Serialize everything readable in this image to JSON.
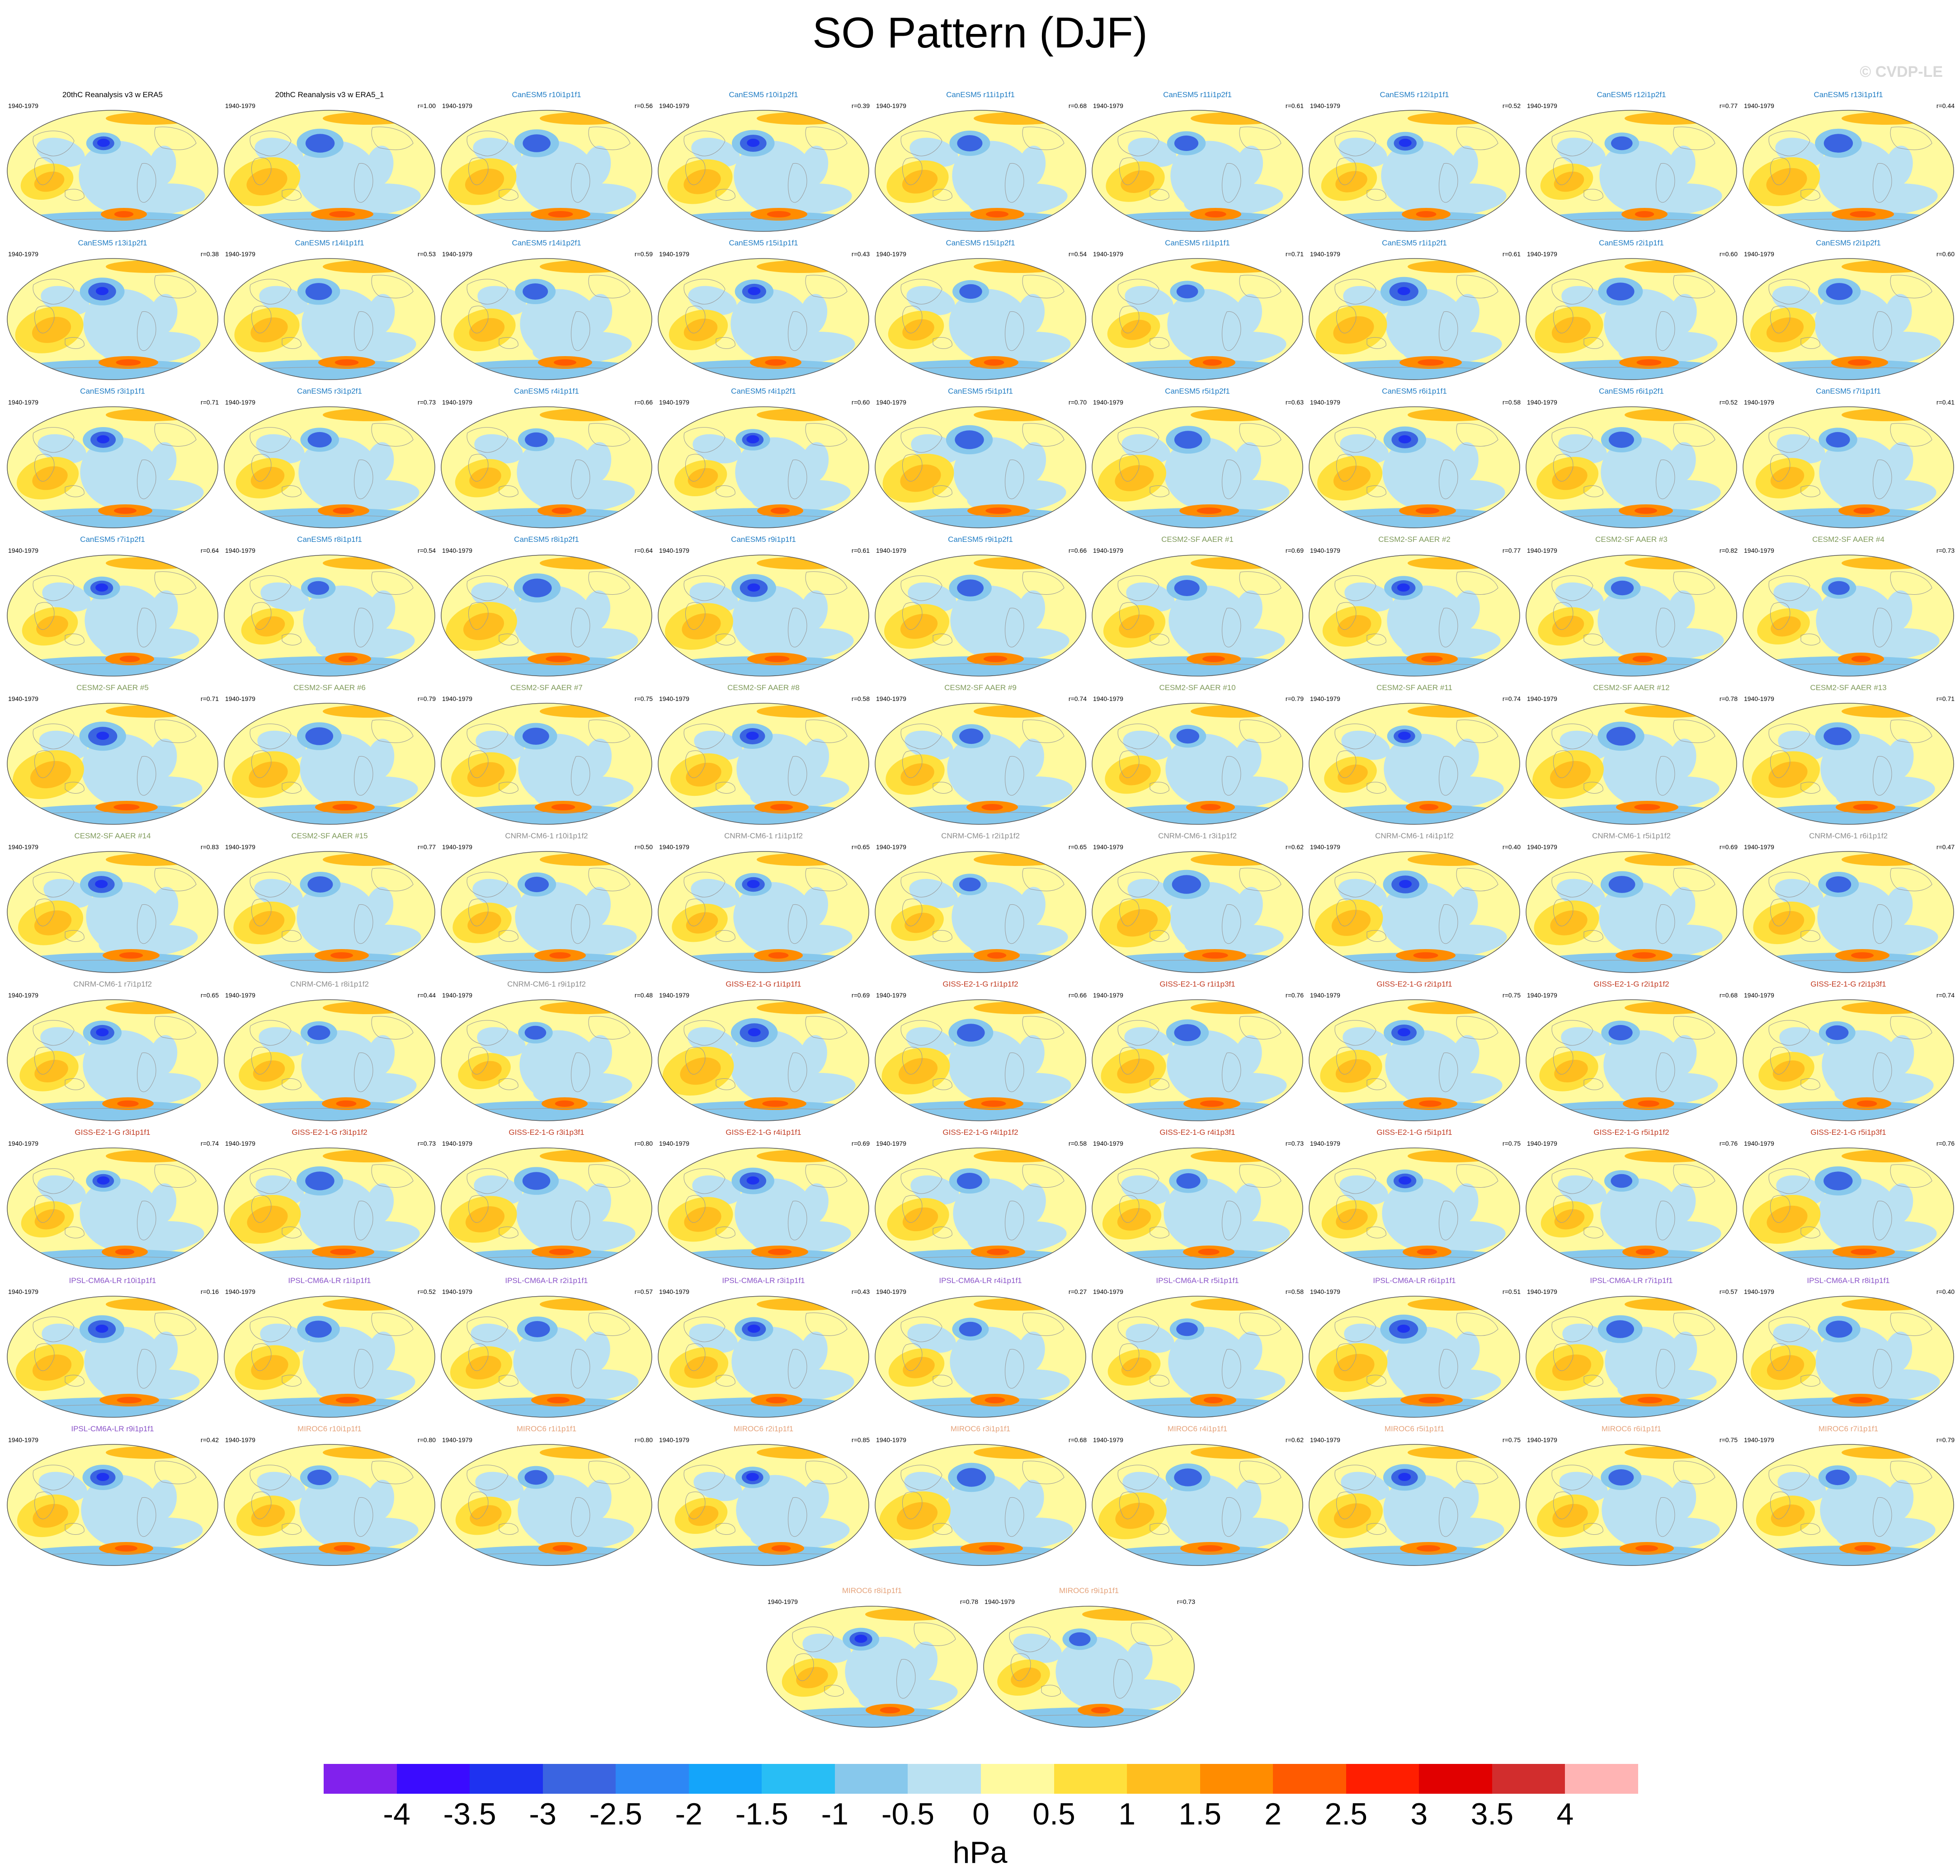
{
  "title": "SO Pattern (DJF)",
  "copyright": "© CVDP-LE",
  "colorbar": {
    "unit": "hPa",
    "labels": [
      "-4",
      "-3.5",
      "-3",
      "-2.5",
      "-2",
      "-1.5",
      "-1",
      "-0.5",
      "0",
      "0.5",
      "1",
      "1.5",
      "2",
      "2.5",
      "3",
      "3.5",
      "4"
    ],
    "colors": [
      "#8121ed",
      "#3a0bff",
      "#1e32f0",
      "#3a64e1",
      "#2d87f5",
      "#14a5fa",
      "#28bef5",
      "#87c8ec",
      "#bae1f2",
      "#fffa9f",
      "#ffe03c",
      "#ffbe1e",
      "#ff8c00",
      "#ff5a00",
      "#ff1e00",
      "#e10000",
      "#d22d2d",
      "#ffb4b4"
    ]
  },
  "model_colors": {
    "obs": "#000000",
    "CanESM5": "#1f7cc4",
    "CESM2-SF AAER": "#7f9a5a",
    "CNRM-CM6-1": "#8c8c8c",
    "GISS-E2-1-G": "#c23b22",
    "IPSL-CM6A-LR": "#8b54c9",
    "MIROC6": "#e5a27a"
  },
  "panels": [
    {
      "title": "20thC Reanalysis v3 w ERA5",
      "years": "1940-1979",
      "r": "",
      "model": "obs"
    },
    {
      "title": "20thC Reanalysis v3 w ERA5_1",
      "years": "1940-1979",
      "r": "r=1.00",
      "model": "obs"
    },
    {
      "title": "CanESM5 r10i1p1f1",
      "years": "1940-1979",
      "r": "r=0.56",
      "model": "CanESM5"
    },
    {
      "title": "CanESM5 r10i1p2f1",
      "years": "1940-1979",
      "r": "r=0.39",
      "model": "CanESM5"
    },
    {
      "title": "CanESM5 r11i1p1f1",
      "years": "1940-1979",
      "r": "r=0.68",
      "model": "CanESM5"
    },
    {
      "title": "CanESM5 r11i1p2f1",
      "years": "1940-1979",
      "r": "r=0.61",
      "model": "CanESM5"
    },
    {
      "title": "CanESM5 r12i1p1f1",
      "years": "1940-1979",
      "r": "r=0.52",
      "model": "CanESM5"
    },
    {
      "title": "CanESM5 r12i1p2f1",
      "years": "1940-1979",
      "r": "r=0.77",
      "model": "CanESM5"
    },
    {
      "title": "CanESM5 r13i1p1f1",
      "years": "1940-1979",
      "r": "r=0.44",
      "model": "CanESM5"
    },
    {
      "title": "CanESM5 r13i1p2f1",
      "years": "1940-1979",
      "r": "r=0.38",
      "model": "CanESM5"
    },
    {
      "title": "CanESM5 r14i1p1f1",
      "years": "1940-1979",
      "r": "r=0.53",
      "model": "CanESM5"
    },
    {
      "title": "CanESM5 r14i1p2f1",
      "years": "1940-1979",
      "r": "r=0.59",
      "model": "CanESM5"
    },
    {
      "title": "CanESM5 r15i1p1f1",
      "years": "1940-1979",
      "r": "r=0.43",
      "model": "CanESM5"
    },
    {
      "title": "CanESM5 r15i1p2f1",
      "years": "1940-1979",
      "r": "r=0.54",
      "model": "CanESM5"
    },
    {
      "title": "CanESM5 r1i1p1f1",
      "years": "1940-1979",
      "r": "r=0.71",
      "model": "CanESM5"
    },
    {
      "title": "CanESM5 r1i1p2f1",
      "years": "1940-1979",
      "r": "r=0.61",
      "model": "CanESM5"
    },
    {
      "title": "CanESM5 r2i1p1f1",
      "years": "1940-1979",
      "r": "r=0.60",
      "model": "CanESM5"
    },
    {
      "title": "CanESM5 r2i1p2f1",
      "years": "1940-1979",
      "r": "r=0.60",
      "model": "CanESM5"
    },
    {
      "title": "CanESM5 r3i1p1f1",
      "years": "1940-1979",
      "r": "r=0.71",
      "model": "CanESM5"
    },
    {
      "title": "CanESM5 r3i1p2f1",
      "years": "1940-1979",
      "r": "r=0.73",
      "model": "CanESM5"
    },
    {
      "title": "CanESM5 r4i1p1f1",
      "years": "1940-1979",
      "r": "r=0.66",
      "model": "CanESM5"
    },
    {
      "title": "CanESM5 r4i1p2f1",
      "years": "1940-1979",
      "r": "r=0.60",
      "model": "CanESM5"
    },
    {
      "title": "CanESM5 r5i1p1f1",
      "years": "1940-1979",
      "r": "r=0.70",
      "model": "CanESM5"
    },
    {
      "title": "CanESM5 r5i1p2f1",
      "years": "1940-1979",
      "r": "r=0.63",
      "model": "CanESM5"
    },
    {
      "title": "CanESM5 r6i1p1f1",
      "years": "1940-1979",
      "r": "r=0.58",
      "model": "CanESM5"
    },
    {
      "title": "CanESM5 r6i1p2f1",
      "years": "1940-1979",
      "r": "r=0.52",
      "model": "CanESM5"
    },
    {
      "title": "CanESM5 r7i1p1f1",
      "years": "1940-1979",
      "r": "r=0.41",
      "model": "CanESM5"
    },
    {
      "title": "CanESM5 r7i1p2f1",
      "years": "1940-1979",
      "r": "r=0.64",
      "model": "CanESM5"
    },
    {
      "title": "CanESM5 r8i1p1f1",
      "years": "1940-1979",
      "r": "r=0.54",
      "model": "CanESM5"
    },
    {
      "title": "CanESM5 r8i1p2f1",
      "years": "1940-1979",
      "r": "r=0.64",
      "model": "CanESM5"
    },
    {
      "title": "CanESM5 r9i1p1f1",
      "years": "1940-1979",
      "r": "r=0.61",
      "model": "CanESM5"
    },
    {
      "title": "CanESM5 r9i1p2f1",
      "years": "1940-1979",
      "r": "r=0.66",
      "model": "CanESM5"
    },
    {
      "title": "CESM2-SF AAER #1",
      "years": "1940-1979",
      "r": "r=0.69",
      "model": "CESM2-SF AAER"
    },
    {
      "title": "CESM2-SF AAER #2",
      "years": "1940-1979",
      "r": "r=0.77",
      "model": "CESM2-SF AAER"
    },
    {
      "title": "CESM2-SF AAER #3",
      "years": "1940-1979",
      "r": "r=0.82",
      "model": "CESM2-SF AAER"
    },
    {
      "title": "CESM2-SF AAER #4",
      "years": "1940-1979",
      "r": "r=0.73",
      "model": "CESM2-SF AAER"
    },
    {
      "title": "CESM2-SF AAER #5",
      "years": "1940-1979",
      "r": "r=0.71",
      "model": "CESM2-SF AAER"
    },
    {
      "title": "CESM2-SF AAER #6",
      "years": "1940-1979",
      "r": "r=0.79",
      "model": "CESM2-SF AAER"
    },
    {
      "title": "CESM2-SF AAER #7",
      "years": "1940-1979",
      "r": "r=0.75",
      "model": "CESM2-SF AAER"
    },
    {
      "title": "CESM2-SF AAER #8",
      "years": "1940-1979",
      "r": "r=0.58",
      "model": "CESM2-SF AAER"
    },
    {
      "title": "CESM2-SF AAER #9",
      "years": "1940-1979",
      "r": "r=0.74",
      "model": "CESM2-SF AAER"
    },
    {
      "title": "CESM2-SF AAER #10",
      "years": "1940-1979",
      "r": "r=0.79",
      "model": "CESM2-SF AAER"
    },
    {
      "title": "CESM2-SF AAER #11",
      "years": "1940-1979",
      "r": "r=0.74",
      "model": "CESM2-SF AAER"
    },
    {
      "title": "CESM2-SF AAER #12",
      "years": "1940-1979",
      "r": "r=0.78",
      "model": "CESM2-SF AAER"
    },
    {
      "title": "CESM2-SF AAER #13",
      "years": "1940-1979",
      "r": "r=0.71",
      "model": "CESM2-SF AAER"
    },
    {
      "title": "CESM2-SF AAER #14",
      "years": "1940-1979",
      "r": "r=0.83",
      "model": "CESM2-SF AAER"
    },
    {
      "title": "CESM2-SF AAER #15",
      "years": "1940-1979",
      "r": "r=0.77",
      "model": "CESM2-SF AAER"
    },
    {
      "title": "CNRM-CM6-1 r10i1p1f2",
      "years": "1940-1979",
      "r": "r=0.50",
      "model": "CNRM-CM6-1"
    },
    {
      "title": "CNRM-CM6-1 r1i1p1f2",
      "years": "1940-1979",
      "r": "r=0.65",
      "model": "CNRM-CM6-1"
    },
    {
      "title": "CNRM-CM6-1 r2i1p1f2",
      "years": "1940-1979",
      "r": "r=0.65",
      "model": "CNRM-CM6-1"
    },
    {
      "title": "CNRM-CM6-1 r3i1p1f2",
      "years": "1940-1979",
      "r": "r=0.62",
      "model": "CNRM-CM6-1"
    },
    {
      "title": "CNRM-CM6-1 r4i1p1f2",
      "years": "1940-1979",
      "r": "r=0.40",
      "model": "CNRM-CM6-1"
    },
    {
      "title": "CNRM-CM6-1 r5i1p1f2",
      "years": "1940-1979",
      "r": "r=0.69",
      "model": "CNRM-CM6-1"
    },
    {
      "title": "CNRM-CM6-1 r6i1p1f2",
      "years": "1940-1979",
      "r": "r=0.47",
      "model": "CNRM-CM6-1"
    },
    {
      "title": "CNRM-CM6-1 r7i1p1f2",
      "years": "1940-1979",
      "r": "r=0.65",
      "model": "CNRM-CM6-1"
    },
    {
      "title": "CNRM-CM6-1 r8i1p1f2",
      "years": "1940-1979",
      "r": "r=0.44",
      "model": "CNRM-CM6-1"
    },
    {
      "title": "CNRM-CM6-1 r9i1p1f2",
      "years": "1940-1979",
      "r": "r=0.48",
      "model": "CNRM-CM6-1"
    },
    {
      "title": "GISS-E2-1-G r1i1p1f1",
      "years": "1940-1979",
      "r": "r=0.69",
      "model": "GISS-E2-1-G"
    },
    {
      "title": "GISS-E2-1-G r1i1p1f2",
      "years": "1940-1979",
      "r": "r=0.66",
      "model": "GISS-E2-1-G"
    },
    {
      "title": "GISS-E2-1-G r1i1p3f1",
      "years": "1940-1979",
      "r": "r=0.76",
      "model": "GISS-E2-1-G"
    },
    {
      "title": "GISS-E2-1-G r2i1p1f1",
      "years": "1940-1979",
      "r": "r=0.75",
      "model": "GISS-E2-1-G"
    },
    {
      "title": "GISS-E2-1-G r2i1p1f2",
      "years": "1940-1979",
      "r": "r=0.68",
      "model": "GISS-E2-1-G"
    },
    {
      "title": "GISS-E2-1-G r2i1p3f1",
      "years": "1940-1979",
      "r": "r=0.74",
      "model": "GISS-E2-1-G"
    },
    {
      "title": "GISS-E2-1-G r3i1p1f1",
      "years": "1940-1979",
      "r": "r=0.74",
      "model": "GISS-E2-1-G"
    },
    {
      "title": "GISS-E2-1-G r3i1p1f2",
      "years": "1940-1979",
      "r": "r=0.73",
      "model": "GISS-E2-1-G"
    },
    {
      "title": "GISS-E2-1-G r3i1p3f1",
      "years": "1940-1979",
      "r": "r=0.80",
      "model": "GISS-E2-1-G"
    },
    {
      "title": "GISS-E2-1-G r4i1p1f1",
      "years": "1940-1979",
      "r": "r=0.69",
      "model": "GISS-E2-1-G"
    },
    {
      "title": "GISS-E2-1-G r4i1p1f2",
      "years": "1940-1979",
      "r": "r=0.58",
      "model": "GISS-E2-1-G"
    },
    {
      "title": "GISS-E2-1-G r4i1p3f1",
      "years": "1940-1979",
      "r": "r=0.73",
      "model": "GISS-E2-1-G"
    },
    {
      "title": "GISS-E2-1-G r5i1p1f1",
      "years": "1940-1979",
      "r": "r=0.75",
      "model": "GISS-E2-1-G"
    },
    {
      "title": "GISS-E2-1-G r5i1p1f2",
      "years": "1940-1979",
      "r": "r=0.76",
      "model": "GISS-E2-1-G"
    },
    {
      "title": "GISS-E2-1-G r5i1p3f1",
      "years": "1940-1979",
      "r": "r=0.76",
      "model": "GISS-E2-1-G"
    },
    {
      "title": "IPSL-CM6A-LR r10i1p1f1",
      "years": "1940-1979",
      "r": "r=0.16",
      "model": "IPSL-CM6A-LR"
    },
    {
      "title": "IPSL-CM6A-LR r1i1p1f1",
      "years": "1940-1979",
      "r": "r=0.52",
      "model": "IPSL-CM6A-LR"
    },
    {
      "title": "IPSL-CM6A-LR r2i1p1f1",
      "years": "1940-1979",
      "r": "r=0.57",
      "model": "IPSL-CM6A-LR"
    },
    {
      "title": "IPSL-CM6A-LR r3i1p1f1",
      "years": "1940-1979",
      "r": "r=0.43",
      "model": "IPSL-CM6A-LR"
    },
    {
      "title": "IPSL-CM6A-LR r4i1p1f1",
      "years": "1940-1979",
      "r": "r=0.27",
      "model": "IPSL-CM6A-LR"
    },
    {
      "title": "IPSL-CM6A-LR r5i1p1f1",
      "years": "1940-1979",
      "r": "r=0.58",
      "model": "IPSL-CM6A-LR"
    },
    {
      "title": "IPSL-CM6A-LR r6i1p1f1",
      "years": "1940-1979",
      "r": "r=0.51",
      "model": "IPSL-CM6A-LR"
    },
    {
      "title": "IPSL-CM6A-LR r7i1p1f1",
      "years": "1940-1979",
      "r": "r=0.57",
      "model": "IPSL-CM6A-LR"
    },
    {
      "title": "IPSL-CM6A-LR r8i1p1f1",
      "years": "1940-1979",
      "r": "r=0.40",
      "model": "IPSL-CM6A-LR"
    },
    {
      "title": "IPSL-CM6A-LR r9i1p1f1",
      "years": "1940-1979",
      "r": "r=0.42",
      "model": "IPSL-CM6A-LR"
    },
    {
      "title": "MIROC6 r10i1p1f1",
      "years": "1940-1979",
      "r": "r=0.80",
      "model": "MIROC6"
    },
    {
      "title": "MIROC6 r1i1p1f1",
      "years": "1940-1979",
      "r": "r=0.80",
      "model": "MIROC6"
    },
    {
      "title": "MIROC6 r2i1p1f1",
      "years": "1940-1979",
      "r": "r=0.85",
      "model": "MIROC6"
    },
    {
      "title": "MIROC6 r3i1p1f1",
      "years": "1940-1979",
      "r": "r=0.68",
      "model": "MIROC6"
    },
    {
      "title": "MIROC6 r4i1p1f1",
      "years": "1940-1979",
      "r": "r=0.62",
      "model": "MIROC6"
    },
    {
      "title": "MIROC6 r5i1p1f1",
      "years": "1940-1979",
      "r": "r=0.75",
      "model": "MIROC6"
    },
    {
      "title": "MIROC6 r6i1p1f1",
      "years": "1940-1979",
      "r": "r=0.75",
      "model": "MIROC6"
    },
    {
      "title": "MIROC6 r7i1p1f1",
      "years": "1940-1979",
      "r": "r=0.79",
      "model": "MIROC6"
    },
    {
      "title": "MIROC6 r8i1p1f1",
      "years": "1940-1979",
      "r": "r=0.78",
      "model": "MIROC6"
    },
    {
      "title": "MIROC6 r9i1p1f1",
      "years": "1940-1979",
      "r": "r=0.73",
      "model": "MIROC6"
    }
  ]
}
